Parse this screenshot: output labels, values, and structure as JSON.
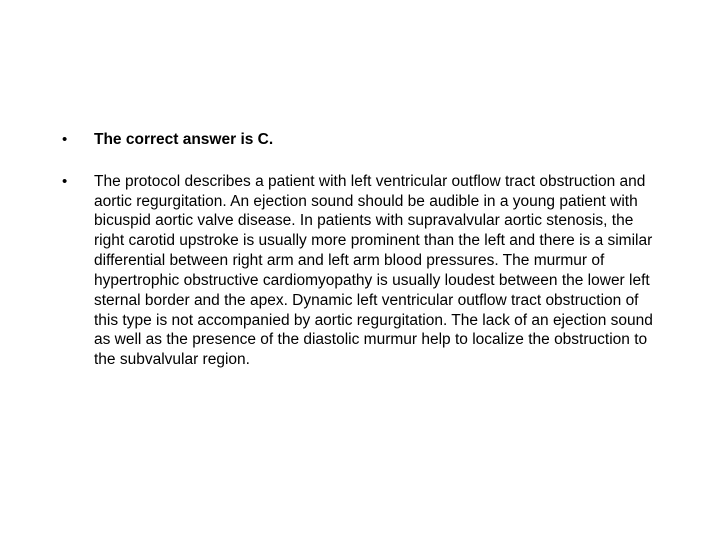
{
  "bullets": [
    {
      "text": "The correct answer is C.",
      "bold": true
    },
    {
      "text": "The protocol describes a patient with left ventricular outflow tract obstruction and aortic regurgitation. An ejection sound should be audible in a young patient with bicuspid aortic valve disease. In patients with supravalvular aortic stenosis, the right carotid upstroke is usually more prominent than the left and there is a similar differential between right arm and left arm blood pressures. The murmur of hypertrophic obstructive cardiomyopathy is usually loudest between the lower left sternal border and the apex. Dynamic left ventricular outflow tract obstruction of this type is not accompanied by aortic regurgitation. The lack of an ejection sound as well as the presence of the diastolic murmur help to localize the obstruction to the subvalvular region.",
      "bold": false
    }
  ]
}
